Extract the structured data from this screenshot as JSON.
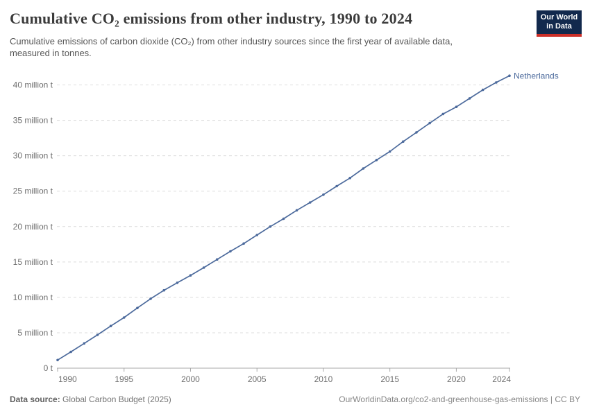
{
  "header": {
    "title": "Cumulative CO₂ emissions from other industry, 1990 to 2024",
    "logo": {
      "line1": "Our World",
      "line2": "in Data"
    }
  },
  "subtitle": {
    "line1": "Cumulative emissions of carbon dioxide (CO₂) from other industry sources since the first year of available data,",
    "line2": "measured in tonnes."
  },
  "chart_data": {
    "type": "line",
    "title": "Cumulative CO₂ emissions from other industry, 1990 to 2024",
    "xlabel": "",
    "ylabel": "",
    "xlim": [
      1990,
      2024
    ],
    "ylim": [
      0,
      40
    ],
    "grid": "horizontal-dashed",
    "legend_position": "end-of-line-label",
    "x": [
      1990,
      1991,
      1992,
      1993,
      1994,
      1995,
      1996,
      1997,
      1998,
      1999,
      2000,
      2001,
      2002,
      2003,
      2004,
      2005,
      2006,
      2007,
      2008,
      2009,
      2010,
      2011,
      2012,
      2013,
      2014,
      2015,
      2016,
      2017,
      2018,
      2019,
      2020,
      2021,
      2022,
      2023,
      2024
    ],
    "series": [
      {
        "name": "Netherlands",
        "unit": "million t",
        "values": [
          1.15,
          2.3,
          3.5,
          4.7,
          5.95,
          7.15,
          8.5,
          9.8,
          11.0,
          12.05,
          13.1,
          14.2,
          15.35,
          16.5,
          17.6,
          18.8,
          20.0,
          21.1,
          22.3,
          23.4,
          24.5,
          25.7,
          26.85,
          28.2,
          29.4,
          30.6,
          32.0,
          33.3,
          34.6,
          35.9,
          36.9,
          38.1,
          39.3,
          40.35,
          41.3
        ]
      }
    ],
    "x_ticks": {
      "values": [
        1990,
        1995,
        2000,
        2005,
        2010,
        2015,
        2020,
        2024
      ],
      "labels": [
        "1990",
        "1995",
        "2000",
        "2005",
        "2010",
        "2015",
        "2020",
        "2024"
      ]
    },
    "y_ticks": {
      "values": [
        0,
        5,
        10,
        15,
        20,
        25,
        30,
        35,
        40
      ],
      "labels": [
        "0 t",
        "5 million t",
        "10 million t",
        "15 million t",
        "20 million t",
        "25 million t",
        "30 million t",
        "35 million t",
        "40 million t"
      ]
    }
  },
  "footer": {
    "source_label": "Data source:",
    "source_value": " Global Carbon Budget (2025)",
    "link": "OurWorldinData.org/co2-and-greenhouse-gas-emissions | CC BY"
  },
  "colors": {
    "line": "#4C6A9C",
    "entity_label": "#4C6A9C",
    "grid": "#dcdcdc",
    "axis": "#a8a8a8",
    "tick_label": "#6e6e6e",
    "logo_bg": "#12294d",
    "logo_red": "#cc2f28"
  }
}
